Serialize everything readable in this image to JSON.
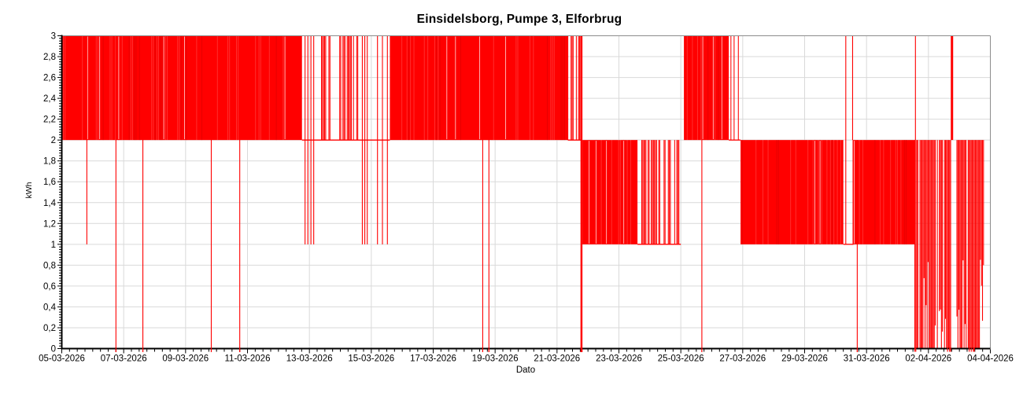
{
  "chart": {
    "title": "Einsidelsborg, Pumpe 3, Elforbrug",
    "xlabel": "Dato",
    "ylabel": "kWh",
    "series_color": "#ff0000",
    "series_dark_color": "#d40000",
    "grid_color": "#d9d9d9",
    "frame_color": "#8c8c8c",
    "axis_color": "#000000",
    "text_color": "#000000",
    "background_color": "#ffffff"
  },
  "chart_data": {
    "type": "line",
    "title": "Einsidelsborg, Pumpe 3, Elforbrug",
    "xlabel": "Dato",
    "ylabel": "kWh",
    "ylim": [
      0,
      3
    ],
    "xlim_days": [
      0,
      30
    ],
    "x_start_date": "05-03-2026",
    "x_end_date": "04-04-2026",
    "x_tick_interval_days": 2,
    "x_tick_labels": [
      "05-03-2026",
      "07-03-2026",
      "09-03-2026",
      "11-03-2026",
      "13-03-2026",
      "15-03-2026",
      "17-03-2026",
      "19-03-2026",
      "21-03-2026",
      "23-03-2026",
      "25-03-2026",
      "27-03-2026",
      "29-03-2026",
      "31-03-2026",
      "02-04-2026",
      "04-04-2026"
    ],
    "y_tick_labels_top_to_bottom": [
      "3",
      "2,8",
      "2,6",
      "2,4",
      "2,2",
      "2",
      "1,8",
      "1,6",
      "1,4",
      "1,2",
      "1",
      "0,8",
      "0,6",
      "0,4",
      "0,2",
      "0"
    ],
    "grid": true,
    "legend": "none",
    "description": "High-frequency kWh readings oscillating inside bands; days measured from 05-03-2026.",
    "oscillation_segments": [
      {
        "start_day": 0.0,
        "end_day": 7.76,
        "low": 2,
        "high": 3,
        "style": "solid"
      },
      {
        "start_day": 8.39,
        "end_day": 8.7,
        "low": 2,
        "high": 3,
        "style": "striped",
        "fill": 0.55
      },
      {
        "start_day": 8.98,
        "end_day": 9.59,
        "low": 2,
        "high": 3,
        "style": "striped",
        "fill": 0.8
      },
      {
        "start_day": 10.6,
        "end_day": 16.35,
        "low": 2,
        "high": 3,
        "style": "solid"
      },
      {
        "start_day": 16.35,
        "end_day": 16.78,
        "low": 2,
        "high": 3,
        "style": "striped",
        "fill": 0.6
      },
      {
        "start_day": 16.82,
        "end_day": 18.6,
        "low": 1,
        "high": 2,
        "style": "solid"
      },
      {
        "start_day": 18.6,
        "end_day": 19.97,
        "low": 1,
        "high": 2,
        "style": "striped",
        "fill": 0.55
      },
      {
        "start_day": 20.1,
        "end_day": 21.55,
        "low": 2,
        "high": 3,
        "style": "solid"
      },
      {
        "start_day": 21.55,
        "end_day": 21.9,
        "low": 2,
        "high": 3,
        "style": "striped",
        "fill": 0.22
      },
      {
        "start_day": 21.93,
        "end_day": 25.25,
        "low": 1,
        "high": 2,
        "style": "solid"
      },
      {
        "start_day": 25.55,
        "end_day": 27.56,
        "low": 1,
        "high": 2,
        "style": "solid"
      },
      {
        "start_day": 27.56,
        "end_day": 28.72,
        "low": 0,
        "high": 2,
        "style": "dense",
        "fill": 0.88
      },
      {
        "start_day": 28.92,
        "end_day": 29.8,
        "low": 0,
        "high": 2,
        "style": "dense",
        "fill": 0.88
      }
    ],
    "baselines": [
      {
        "start_day": 7.76,
        "end_day": 10.6,
        "value": 2
      },
      {
        "start_day": 16.35,
        "end_day": 16.8,
        "value": 2
      },
      {
        "start_day": 18.6,
        "end_day": 20.0,
        "value": 1
      },
      {
        "start_day": 21.55,
        "end_day": 21.93,
        "value": 2
      },
      {
        "start_day": 25.25,
        "end_day": 25.58,
        "value": 1
      }
    ],
    "spikes": [
      {
        "day": 0.81,
        "from": 3,
        "to": 1
      },
      {
        "day": 1.75,
        "from": 3,
        "to": 0
      },
      {
        "day": 2.62,
        "from": 3,
        "to": 0
      },
      {
        "day": 4.83,
        "from": 3,
        "to": 0
      },
      {
        "day": 5.75,
        "from": 3,
        "to": 0
      },
      {
        "day": 7.86,
        "from": 3,
        "to": 1
      },
      {
        "day": 7.95,
        "from": 3,
        "to": 1
      },
      {
        "day": 8.05,
        "from": 3,
        "to": 1
      },
      {
        "day": 8.14,
        "from": 3,
        "to": 1
      },
      {
        "day": 9.71,
        "from": 3,
        "to": 1
      },
      {
        "day": 9.79,
        "from": 3,
        "to": 1
      },
      {
        "day": 9.87,
        "from": 3,
        "to": 1
      },
      {
        "day": 10.2,
        "from": 3,
        "to": 1
      },
      {
        "day": 10.36,
        "from": 3,
        "to": 1
      },
      {
        "day": 10.52,
        "from": 3,
        "to": 1
      },
      {
        "day": 13.6,
        "from": 3,
        "to": 0
      },
      {
        "day": 13.8,
        "from": 3,
        "to": 0
      },
      {
        "day": 16.79,
        "from": 3,
        "to": 0,
        "width": 2.5
      },
      {
        "day": 20.68,
        "from": 2,
        "to": 0
      },
      {
        "day": 25.33,
        "from": 3,
        "to": 1
      },
      {
        "day": 25.55,
        "from": 3,
        "to": 2
      },
      {
        "day": 25.7,
        "from": 2,
        "to": 0
      },
      {
        "day": 27.58,
        "from": 3,
        "to": 2
      },
      {
        "day": 28.76,
        "from": 3,
        "to": 2,
        "width": 3
      }
    ],
    "texture_seed": 1337
  }
}
